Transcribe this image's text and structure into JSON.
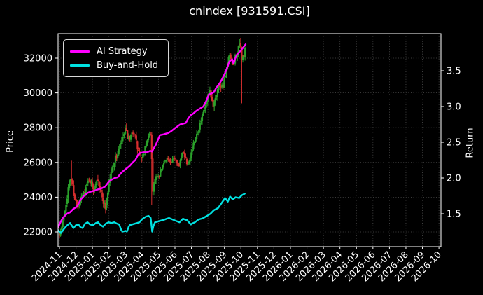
{
  "title": "cnindex [931591.CSI]",
  "colors": {
    "background": "#000000",
    "text": "#ffffff",
    "spine": "#ffffff",
    "grid": "#4f4f4f",
    "ai_strategy": "#ff00ff",
    "buy_and_hold": "#00e1e1",
    "candle_up": "#2ba22b",
    "candle_down": "#d62e2e"
  },
  "chart_data": {
    "type": "line",
    "title": "cnindex [931591.CSI]",
    "grid": {
      "shown": true,
      "style": "dotted",
      "color": "#4f4f4f"
    },
    "x_axis": {
      "tick_labels": [
        "2024-11",
        "2024-12",
        "2025-01",
        "2025-02",
        "2025-03",
        "2025-04",
        "2025-05",
        "2025-06",
        "2025-07",
        "2025-08",
        "2025-09",
        "2025-10",
        "2025-11",
        "2025-12",
        "2026-01",
        "2026-02",
        "2026-03",
        "2026-04",
        "2026-05",
        "2026-06",
        "2026-07",
        "2026-08",
        "2026-09",
        "2026-10"
      ]
    },
    "price_axis": {
      "label": "Price",
      "range": [
        21150,
        33400
      ],
      "ticks": [
        [
          22000,
          "22000"
        ],
        [
          24000,
          "24000"
        ],
        [
          26000,
          "26000"
        ],
        [
          28000,
          "28000"
        ],
        [
          30000,
          "30000"
        ],
        [
          32000,
          "32000"
        ]
      ]
    },
    "return_axis": {
      "label": "Return",
      "range": [
        1.04,
        4.02
      ],
      "ticks": [
        [
          1.5,
          "1.5"
        ],
        [
          2.0,
          "2.0"
        ],
        [
          2.5,
          "2.5"
        ],
        [
          3.0,
          "3.0"
        ],
        [
          3.5,
          "3.5"
        ]
      ]
    },
    "legend": {
      "position": "upper-left",
      "entries": [
        {
          "label": "AI Strategy",
          "color": "#ff00ff"
        },
        {
          "label": "Buy-and-Hold",
          "color": "#00e1e1"
        }
      ]
    },
    "series": [
      {
        "name": "AI Strategy",
        "type": "line",
        "axis": "return",
        "color": "#ff00ff",
        "width": 2.4,
        "points": [
          [
            -0.08,
            1.31
          ],
          [
            0.1,
            1.4
          ],
          [
            0.2,
            1.44
          ],
          [
            0.45,
            1.5
          ],
          [
            0.64,
            1.52
          ],
          [
            0.8,
            1.56
          ],
          [
            1.06,
            1.6
          ],
          [
            1.3,
            1.7
          ],
          [
            1.49,
            1.75
          ],
          [
            1.7,
            1.79
          ],
          [
            1.91,
            1.81
          ],
          [
            2.1,
            1.82
          ],
          [
            2.34,
            1.84
          ],
          [
            2.6,
            1.86
          ],
          [
            2.77,
            1.88
          ],
          [
            3.0,
            1.95
          ],
          [
            3.11,
            1.97
          ],
          [
            3.35,
            2.0
          ],
          [
            3.53,
            2.01
          ],
          [
            3.7,
            2.06
          ],
          [
            3.83,
            2.09
          ],
          [
            4.05,
            2.13
          ],
          [
            4.26,
            2.17
          ],
          [
            4.45,
            2.22
          ],
          [
            4.6,
            2.25
          ],
          [
            4.75,
            2.32
          ],
          [
            4.89,
            2.35
          ],
          [
            5.1,
            2.36
          ],
          [
            5.32,
            2.36
          ],
          [
            5.5,
            2.38
          ],
          [
            5.62,
            2.37
          ],
          [
            5.7,
            2.41
          ],
          [
            5.83,
            2.46
          ],
          [
            6.0,
            2.55
          ],
          [
            6.09,
            2.6
          ],
          [
            6.3,
            2.61
          ],
          [
            6.6,
            2.63
          ],
          [
            6.8,
            2.66
          ],
          [
            7.02,
            2.7
          ],
          [
            7.32,
            2.75
          ],
          [
            7.5,
            2.76
          ],
          [
            7.66,
            2.77
          ],
          [
            7.8,
            2.83
          ],
          [
            7.96,
            2.88
          ],
          [
            8.1,
            2.9
          ],
          [
            8.3,
            2.94
          ],
          [
            8.5,
            2.97
          ],
          [
            8.72,
            3.0
          ],
          [
            8.9,
            3.08
          ],
          [
            9.06,
            3.17
          ],
          [
            9.2,
            3.18
          ],
          [
            9.36,
            3.2
          ],
          [
            9.5,
            3.26
          ],
          [
            9.7,
            3.32
          ],
          [
            9.85,
            3.38
          ],
          [
            10.0,
            3.45
          ],
          [
            10.15,
            3.53
          ],
          [
            10.3,
            3.63
          ],
          [
            10.47,
            3.66
          ],
          [
            10.55,
            3.6
          ],
          [
            10.65,
            3.67
          ],
          [
            10.77,
            3.73
          ],
          [
            10.9,
            3.76
          ],
          [
            11.02,
            3.79
          ],
          [
            11.15,
            3.83
          ],
          [
            11.28,
            3.87
          ]
        ]
      },
      {
        "name": "Buy-and-Hold",
        "type": "line",
        "axis": "return",
        "color": "#00e1e1",
        "width": 2.4,
        "points": [
          [
            -0.08,
            1.27
          ],
          [
            0.09,
            1.23
          ],
          [
            0.25,
            1.28
          ],
          [
            0.43,
            1.33
          ],
          [
            0.64,
            1.37
          ],
          [
            0.85,
            1.3
          ],
          [
            1.0,
            1.34
          ],
          [
            1.15,
            1.35
          ],
          [
            1.28,
            1.31
          ],
          [
            1.4,
            1.3
          ],
          [
            1.55,
            1.36
          ],
          [
            1.7,
            1.38
          ],
          [
            1.85,
            1.35
          ],
          [
            2.04,
            1.34
          ],
          [
            2.2,
            1.37
          ],
          [
            2.34,
            1.38
          ],
          [
            2.5,
            1.34
          ],
          [
            2.64,
            1.32
          ],
          [
            2.8,
            1.36
          ],
          [
            2.98,
            1.38
          ],
          [
            3.15,
            1.37
          ],
          [
            3.32,
            1.38
          ],
          [
            3.5,
            1.36
          ],
          [
            3.62,
            1.35
          ],
          [
            3.75,
            1.27
          ],
          [
            3.83,
            1.25
          ],
          [
            4.0,
            1.26
          ],
          [
            4.09,
            1.25
          ],
          [
            4.2,
            1.32
          ],
          [
            4.26,
            1.34
          ],
          [
            4.4,
            1.35
          ],
          [
            4.55,
            1.36
          ],
          [
            4.7,
            1.37
          ],
          [
            4.85,
            1.38
          ],
          [
            5.0,
            1.42
          ],
          [
            5.11,
            1.44
          ],
          [
            5.25,
            1.46
          ],
          [
            5.4,
            1.47
          ],
          [
            5.5,
            1.45
          ],
          [
            5.53,
            1.44
          ],
          [
            5.62,
            1.25
          ],
          [
            5.7,
            1.33
          ],
          [
            5.79,
            1.38
          ],
          [
            5.95,
            1.39
          ],
          [
            6.09,
            1.4
          ],
          [
            6.25,
            1.41
          ],
          [
            6.38,
            1.42
          ],
          [
            6.5,
            1.43
          ],
          [
            6.64,
            1.44
          ],
          [
            6.85,
            1.42
          ],
          [
            7.06,
            1.4
          ],
          [
            7.28,
            1.38
          ],
          [
            7.49,
            1.43
          ],
          [
            7.6,
            1.42
          ],
          [
            7.74,
            1.41
          ],
          [
            7.85,
            1.38
          ],
          [
            7.96,
            1.35
          ],
          [
            8.1,
            1.37
          ],
          [
            8.21,
            1.38
          ],
          [
            8.43,
            1.42
          ],
          [
            8.6,
            1.43
          ],
          [
            8.72,
            1.44
          ],
          [
            8.94,
            1.47
          ],
          [
            9.15,
            1.5
          ],
          [
            9.36,
            1.55
          ],
          [
            9.62,
            1.58
          ],
          [
            9.83,
            1.65
          ],
          [
            10.04,
            1.72
          ],
          [
            10.21,
            1.67
          ],
          [
            10.34,
            1.74
          ],
          [
            10.51,
            1.7
          ],
          [
            10.68,
            1.73
          ],
          [
            10.89,
            1.72
          ],
          [
            11.06,
            1.76
          ],
          [
            11.23,
            1.78
          ]
        ]
      },
      {
        "name": "cnindex-candles",
        "type": "candlestick",
        "axis": "price",
        "up_color": "#2ba22b",
        "down_color": "#d62e2e",
        "count": 170,
        "seed": 7,
        "span_months": 11.25,
        "trend_points": [
          [
            0,
            21900
          ],
          [
            0.15,
            22300
          ],
          [
            0.35,
            23400
          ],
          [
            0.55,
            24600
          ],
          [
            0.7,
            25200
          ],
          [
            0.9,
            24100
          ],
          [
            1.1,
            23300
          ],
          [
            1.3,
            23900
          ],
          [
            1.55,
            24400
          ],
          [
            1.8,
            25100
          ],
          [
            2.05,
            24400
          ],
          [
            2.3,
            25200
          ],
          [
            2.55,
            24100
          ],
          [
            2.8,
            23400
          ],
          [
            3.0,
            24800
          ],
          [
            3.25,
            25900
          ],
          [
            3.5,
            26400
          ],
          [
            3.75,
            27200
          ],
          [
            4.0,
            27800
          ],
          [
            4.25,
            27200
          ],
          [
            4.5,
            27900
          ],
          [
            4.75,
            26700
          ],
          [
            5.0,
            26100
          ],
          [
            5.3,
            27300
          ],
          [
            5.55,
            27700
          ],
          [
            5.65,
            24300
          ],
          [
            5.8,
            25200
          ],
          [
            6.0,
            25100
          ],
          [
            6.25,
            25800
          ],
          [
            6.5,
            26300
          ],
          [
            6.75,
            25900
          ],
          [
            7.0,
            26300
          ],
          [
            7.25,
            25800
          ],
          [
            7.5,
            26700
          ],
          [
            7.75,
            25900
          ],
          [
            8.0,
            26600
          ],
          [
            8.3,
            27600
          ],
          [
            8.6,
            28400
          ],
          [
            8.9,
            29400
          ],
          [
            9.1,
            30000
          ],
          [
            9.3,
            29300
          ],
          [
            9.5,
            30000
          ],
          [
            9.7,
            30500
          ],
          [
            9.9,
            30400
          ],
          [
            10.1,
            31200
          ],
          [
            10.3,
            32200
          ],
          [
            10.5,
            31500
          ],
          [
            10.7,
            32200
          ],
          [
            10.95,
            32700
          ],
          [
            11.1,
            31900
          ],
          [
            11.25,
            32400
          ]
        ],
        "volatility_points": [
          [
            0,
            300
          ],
          [
            0.5,
            550
          ],
          [
            0.9,
            500
          ],
          [
            1.5,
            350
          ],
          [
            2.2,
            450
          ],
          [
            3.0,
            500
          ],
          [
            3.8,
            450
          ],
          [
            4.3,
            500
          ],
          [
            5.0,
            400
          ],
          [
            5.5,
            300
          ],
          [
            5.65,
            500
          ],
          [
            6.0,
            300
          ],
          [
            6.6,
            300
          ],
          [
            7.3,
            350
          ],
          [
            8.0,
            350
          ],
          [
            8.8,
            450
          ],
          [
            9.3,
            600
          ],
          [
            9.8,
            450
          ],
          [
            10.3,
            400
          ],
          [
            10.7,
            550
          ],
          [
            11.1,
            650
          ],
          [
            11.25,
            500
          ]
        ],
        "wick_events": [
          {
            "m": 0.7,
            "high": 26100
          },
          {
            "m": 5.62,
            "low": 23550
          },
          {
            "m": 11.08,
            "low": 29400
          }
        ]
      }
    ]
  }
}
